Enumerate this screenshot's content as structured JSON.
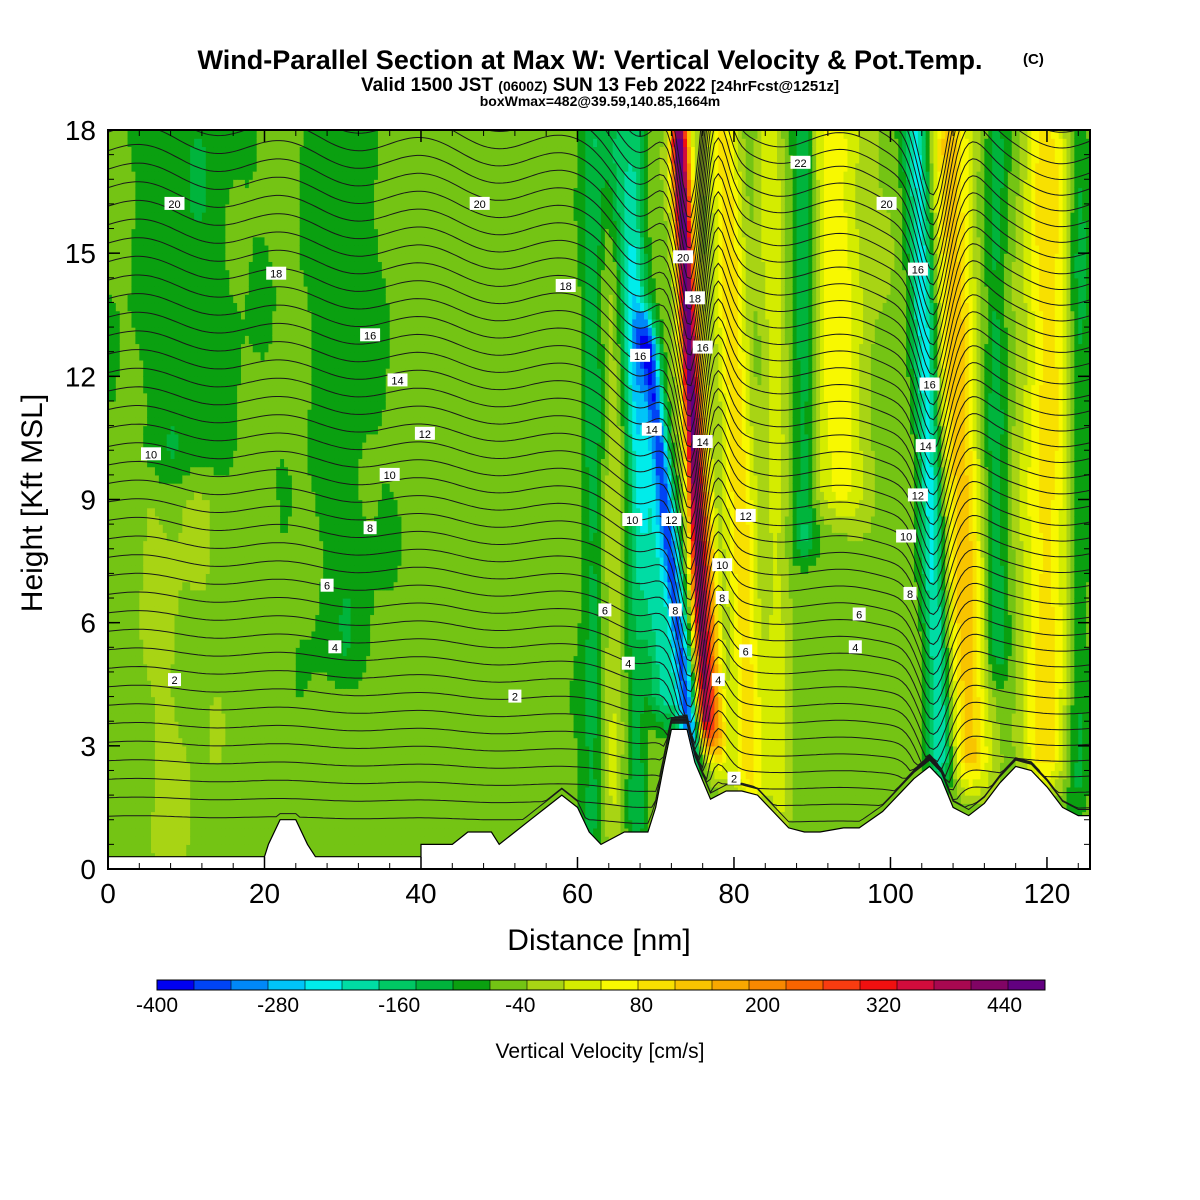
{
  "chart_data": {
    "type": "heatmap",
    "title": "Wind-Parallel Section at Max W: Vertical Velocity & Pot.Temp.",
    "title_mark": "(C)",
    "subtitle_a": "Valid 1500 JST",
    "subtitle_b": "(0600Z)",
    "subtitle_c": "SUN 13 Feb 2022",
    "subtitle_d": "[24hrFcst@1251z]",
    "subtitle2": "boxWmax=482@39.59,140.85,1664m",
    "xlabel": "Distance [nm]",
    "ylabel": "Height [Kft MSL]",
    "xlim": [
      0,
      125.5
    ],
    "ylim": [
      0,
      18
    ],
    "xticks": [
      0,
      20,
      40,
      60,
      80,
      100,
      120
    ],
    "yticks": [
      0,
      3,
      6,
      9,
      12,
      15,
      18
    ],
    "colorbar": {
      "title": "Vertical Velocity [cm/s]",
      "min": -400,
      "max": 480,
      "step": 40,
      "tick_labels": [
        "-400",
        "-280",
        "-160",
        "-40",
        "80",
        "200",
        "320",
        "440"
      ],
      "colors": [
        "#0000f0",
        "#0044f5",
        "#0088f8",
        "#00c4f8",
        "#00ecea",
        "#00dca4",
        "#00c864",
        "#00b43c",
        "#0aa010",
        "#74c414",
        "#a8d414",
        "#d4ec00",
        "#f8f800",
        "#f8e000",
        "#f8c400",
        "#f8a800",
        "#f88800",
        "#f86400",
        "#f83c10",
        "#f01010",
        "#d20c3c",
        "#a80850",
        "#800464",
        "#620080"
      ]
    },
    "terrain": [
      [
        0,
        0.3
      ],
      [
        20,
        0.3
      ],
      [
        20.5,
        0.6
      ],
      [
        22,
        1.2
      ],
      [
        24,
        1.2
      ],
      [
        25.5,
        0.6
      ],
      [
        26.5,
        0.3
      ],
      [
        40,
        0.3
      ],
      [
        40,
        0.6
      ],
      [
        44,
        0.6
      ],
      [
        46,
        0.9
      ],
      [
        49,
        0.9
      ],
      [
        50,
        0.6
      ],
      [
        52,
        0.9
      ],
      [
        54,
        1.2
      ],
      [
        56,
        1.5
      ],
      [
        58,
        1.8
      ],
      [
        60,
        1.5
      ],
      [
        61.5,
        0.9
      ],
      [
        63,
        0.6
      ],
      [
        66,
        0.9
      ],
      [
        69,
        0.9
      ],
      [
        70,
        1.5
      ],
      [
        71,
        2.5
      ],
      [
        72,
        3.4
      ],
      [
        74,
        3.4
      ],
      [
        75,
        2.6
      ],
      [
        77,
        1.7
      ],
      [
        79,
        1.9
      ],
      [
        81,
        1.9
      ],
      [
        83,
        1.8
      ],
      [
        85,
        1.4
      ],
      [
        87,
        1.0
      ],
      [
        89,
        0.9
      ],
      [
        91,
        0.9
      ],
      [
        94,
        1.0
      ],
      [
        96,
        1.0
      ],
      [
        99,
        1.4
      ],
      [
        101,
        1.8
      ],
      [
        103,
        2.2
      ],
      [
        105,
        2.5
      ],
      [
        106.5,
        2.2
      ],
      [
        108,
        1.5
      ],
      [
        110,
        1.3
      ],
      [
        112,
        1.6
      ],
      [
        114,
        2.1
      ],
      [
        116,
        2.5
      ],
      [
        118,
        2.4
      ],
      [
        120,
        2.0
      ],
      [
        122,
        1.5
      ],
      [
        124,
        1.3
      ],
      [
        125.5,
        1.3
      ]
    ],
    "w_field": {
      "background": -20,
      "bands": [
        {
          "x": 74.5,
          "w": 1.2,
          "v": -280,
          "ymin": 3.0,
          "ymax": 13.0,
          "slope": -0.55,
          "y0": 3.0
        },
        {
          "x": 71.5,
          "w": 2.0,
          "v": -160,
          "ymin": 4.0,
          "ymax": 18.0,
          "slope": -0.45,
          "y0": 3.0
        },
        {
          "x": 76.5,
          "w": 1.0,
          "v": 440,
          "ymin": 3.5,
          "ymax": 18.0,
          "slope": -0.25,
          "y0": 3.0
        },
        {
          "x": 78.0,
          "w": 1.2,
          "v": 220,
          "ymin": 3.0,
          "ymax": 18.0,
          "slope": -0.3,
          "y0": 3.0
        },
        {
          "x": 82.0,
          "w": 2.0,
          "v": 160,
          "ymin": 2.0,
          "ymax": 18.0,
          "slope": -0.2,
          "y0": 2.0
        },
        {
          "x": 86.0,
          "w": 1.6,
          "v": 80,
          "ymin": 1.5,
          "ymax": 18.0,
          "slope": -0.1,
          "y0": 2.0
        },
        {
          "x": 93.0,
          "w": 4.0,
          "v": 120,
          "ymin": 9.0,
          "ymax": 18.0,
          "slope": 0.0,
          "y0": 9.0
        },
        {
          "x": 89.0,
          "w": 1.6,
          "v": -120,
          "ymin": 8.0,
          "ymax": 18.0,
          "slope": 0.0,
          "y0": 8.0
        },
        {
          "x": 106.5,
          "w": 1.6,
          "v": -200,
          "ymin": 2.5,
          "ymax": 18.0,
          "slope": -0.2,
          "y0": 2.5
        },
        {
          "x": 110.0,
          "w": 2.5,
          "v": 200,
          "ymin": 2.5,
          "ymax": 18.0,
          "slope": -0.15,
          "y0": 2.5
        },
        {
          "x": 113.5,
          "w": 1.5,
          "v": -80,
          "ymin": 5.0,
          "ymax": 18.0,
          "slope": 0.0,
          "y0": 5.0
        },
        {
          "x": 120.0,
          "w": 3.0,
          "v": 160,
          "ymin": 2.5,
          "ymax": 18.0,
          "slope": 0.0,
          "y0": 2.5
        },
        {
          "x": 124.0,
          "w": 1.5,
          "v": -80,
          "ymin": 2.0,
          "ymax": 18.0,
          "slope": 0.0,
          "y0": 2.0
        },
        {
          "x": 64.5,
          "w": 1.5,
          "v": 60,
          "ymin": 1.0,
          "ymax": 18.0,
          "slope": 0.0,
          "y0": 1.0
        },
        {
          "x": 62.0,
          "w": 1.5,
          "v": -80,
          "ymin": 1.0,
          "ymax": 18.0,
          "slope": 0.0,
          "y0": 1.0
        },
        {
          "x": 67.5,
          "w": 1.2,
          "v": -80,
          "ymin": 1.0,
          "ymax": 18.0,
          "slope": 0.0,
          "y0": 1.0
        },
        {
          "x": 10.0,
          "w": 8.0,
          "v": -50,
          "ymin": 10.0,
          "ymax": 18.0,
          "slope": 0.0,
          "y0": 10.0
        },
        {
          "x": 30.0,
          "w": 5.0,
          "v": -45,
          "ymin": 5.0,
          "ymax": 18.0,
          "slope": 0.0,
          "y0": 5.0
        },
        {
          "x": 8.0,
          "w": 5.0,
          "v": 25,
          "ymin": 0.3,
          "ymax": 9.0,
          "slope": 0.0,
          "y0": 0.3
        }
      ]
    },
    "theta_labels": [
      {
        "t": "20",
        "x": 8.5,
        "y": 16.2
      },
      {
        "t": "18",
        "x": 21.5,
        "y": 14.5
      },
      {
        "t": "16",
        "x": 33.5,
        "y": 13.0
      },
      {
        "t": "14",
        "x": 37.0,
        "y": 11.9
      },
      {
        "t": "12",
        "x": 40.5,
        "y": 10.6
      },
      {
        "t": "10",
        "x": 5.5,
        "y": 10.1
      },
      {
        "t": "10",
        "x": 36.0,
        "y": 9.6
      },
      {
        "t": "8",
        "x": 33.5,
        "y": 8.3
      },
      {
        "t": "6",
        "x": 28.0,
        "y": 6.9
      },
      {
        "t": "4",
        "x": 29.0,
        "y": 5.4
      },
      {
        "t": "2",
        "x": 8.5,
        "y": 4.6
      },
      {
        "t": "20",
        "x": 47.5,
        "y": 16.2
      },
      {
        "t": "18",
        "x": 58.5,
        "y": 14.2
      },
      {
        "t": "2",
        "x": 52.0,
        "y": 4.2
      },
      {
        "t": "16",
        "x": 68.0,
        "y": 12.5
      },
      {
        "t": "20",
        "x": 73.5,
        "y": 14.9
      },
      {
        "t": "18",
        "x": 75.0,
        "y": 13.9
      },
      {
        "t": "16",
        "x": 76.0,
        "y": 12.7
      },
      {
        "t": "14",
        "x": 69.5,
        "y": 10.7
      },
      {
        "t": "14",
        "x": 76.0,
        "y": 10.4
      },
      {
        "t": "12",
        "x": 72.0,
        "y": 8.5
      },
      {
        "t": "12",
        "x": 81.5,
        "y": 8.6
      },
      {
        "t": "10",
        "x": 67.0,
        "y": 8.5
      },
      {
        "t": "10",
        "x": 78.5,
        "y": 7.4
      },
      {
        "t": "8",
        "x": 72.5,
        "y": 6.3
      },
      {
        "t": "8",
        "x": 78.5,
        "y": 6.6
      },
      {
        "t": "6",
        "x": 63.5,
        "y": 6.3
      },
      {
        "t": "6",
        "x": 81.5,
        "y": 5.3
      },
      {
        "t": "4",
        "x": 66.5,
        "y": 5.0
      },
      {
        "t": "4",
        "x": 78.0,
        "y": 4.6
      },
      {
        "t": "2",
        "x": 80.0,
        "y": 2.2
      },
      {
        "t": "22",
        "x": 88.5,
        "y": 17.2
      },
      {
        "t": "20",
        "x": 99.5,
        "y": 16.2
      },
      {
        "t": "16",
        "x": 103.5,
        "y": 14.6
      },
      {
        "t": "16",
        "x": 105.0,
        "y": 11.8
      },
      {
        "t": "14",
        "x": 104.5,
        "y": 10.3
      },
      {
        "t": "12",
        "x": 103.5,
        "y": 9.1
      },
      {
        "t": "10",
        "x": 102.0,
        "y": 8.1
      },
      {
        "t": "8",
        "x": 102.5,
        "y": 6.7
      },
      {
        "t": "6",
        "x": 96.0,
        "y": 6.2
      },
      {
        "t": "4",
        "x": 95.5,
        "y": 5.4
      }
    ]
  }
}
